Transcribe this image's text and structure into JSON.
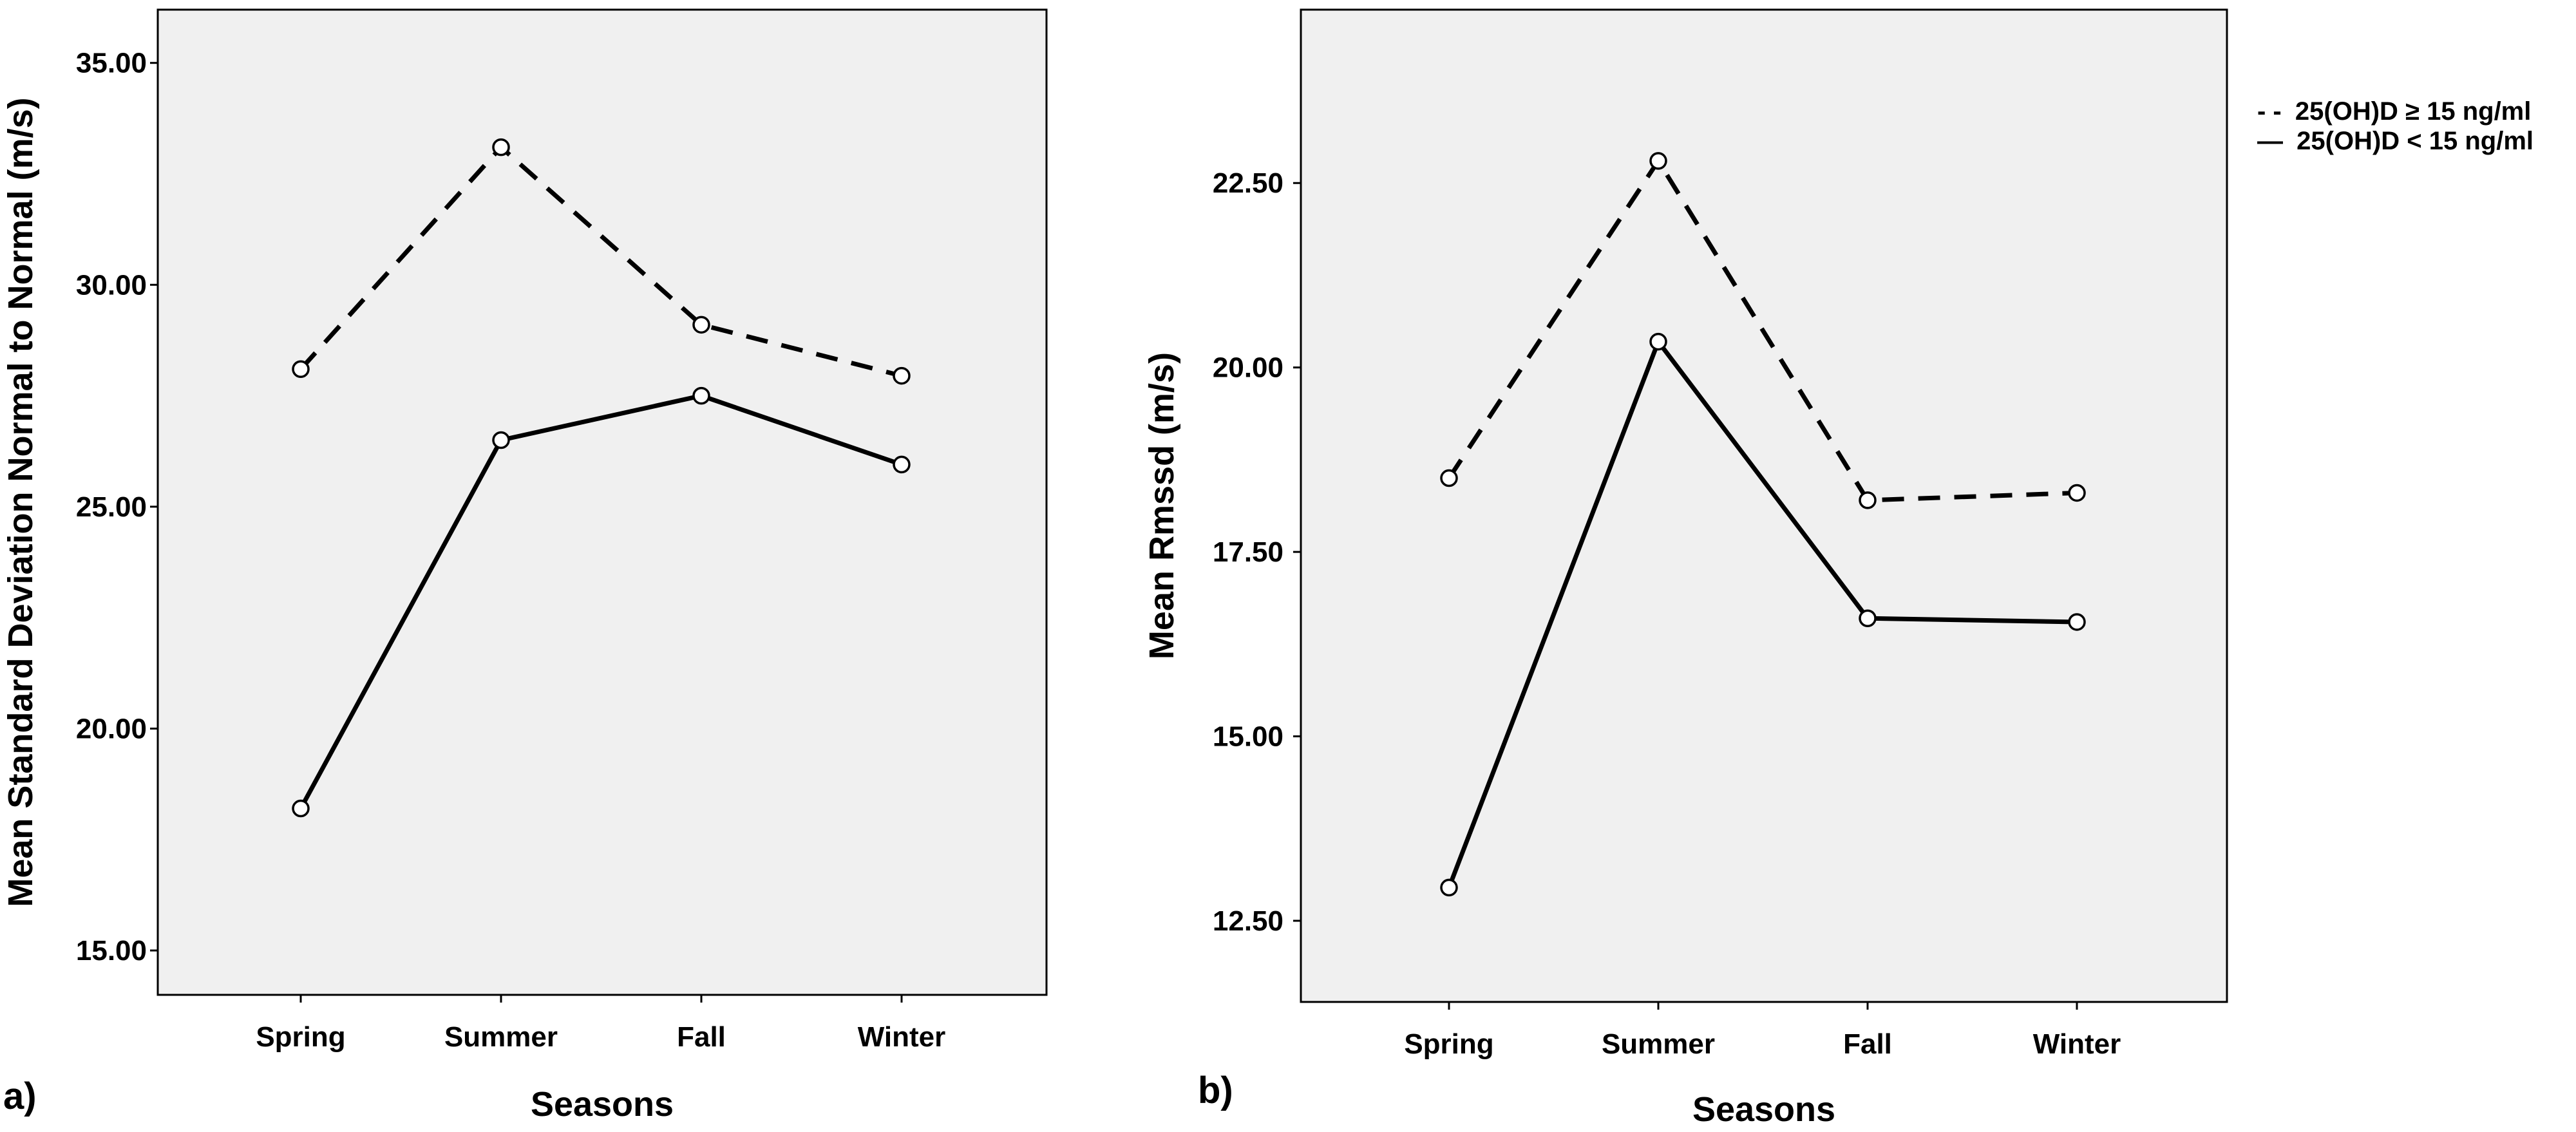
{
  "legend": {
    "entries": [
      {
        "label": "25(OH)D ≥ 15 ng/ml",
        "prefix": "- -",
        "style": "dashed"
      },
      {
        "label": "25(OH)D < 15 ng/ml",
        "prefix": "—",
        "style": "solid"
      }
    ]
  },
  "chart_data": [
    {
      "type": "line",
      "panel_label": "a)",
      "xlabel": "Seasons",
      "ylabel": "Mean Standard Deviation Normal to Normal (m/s)",
      "categories": [
        "Spring",
        "Summer",
        "Fall",
        "Winter"
      ],
      "ylim": [
        14.0,
        36.2
      ],
      "yticks": [
        15.0,
        20.0,
        25.0,
        30.0,
        35.0
      ],
      "ytick_labels": [
        "15.00",
        "20.00",
        "25.00",
        "30.00",
        "35.00"
      ],
      "grid": false,
      "series": [
        {
          "name": "25(OH)D ≥ 15 ng/ml",
          "style": "dashed",
          "values": [
            28.1,
            33.1,
            29.1,
            27.95
          ]
        },
        {
          "name": "25(OH)D < 15 ng/ml",
          "style": "solid",
          "values": [
            18.2,
            26.5,
            27.5,
            25.95
          ]
        }
      ]
    },
    {
      "type": "line",
      "panel_label": "b)",
      "xlabel": "Seasons",
      "ylabel": "Mean Rmssd (m/s)",
      "categories": [
        "Spring",
        "Summer",
        "Fall",
        "Winter"
      ],
      "ylim": [
        11.4,
        24.85
      ],
      "yticks": [
        12.5,
        15.0,
        17.5,
        20.0,
        22.5
      ],
      "ytick_labels": [
        "12.50",
        "15.00",
        "17.50",
        "20.00",
        "22.50"
      ],
      "grid": false,
      "series": [
        {
          "name": "25(OH)D ≥ 15 ng/ml",
          "style": "dashed",
          "values": [
            18.5,
            22.8,
            18.2,
            18.3
          ]
        },
        {
          "name": "25(OH)D < 15 ng/ml",
          "style": "solid",
          "values": [
            12.95,
            20.35,
            16.6,
            16.55
          ]
        }
      ]
    }
  ]
}
